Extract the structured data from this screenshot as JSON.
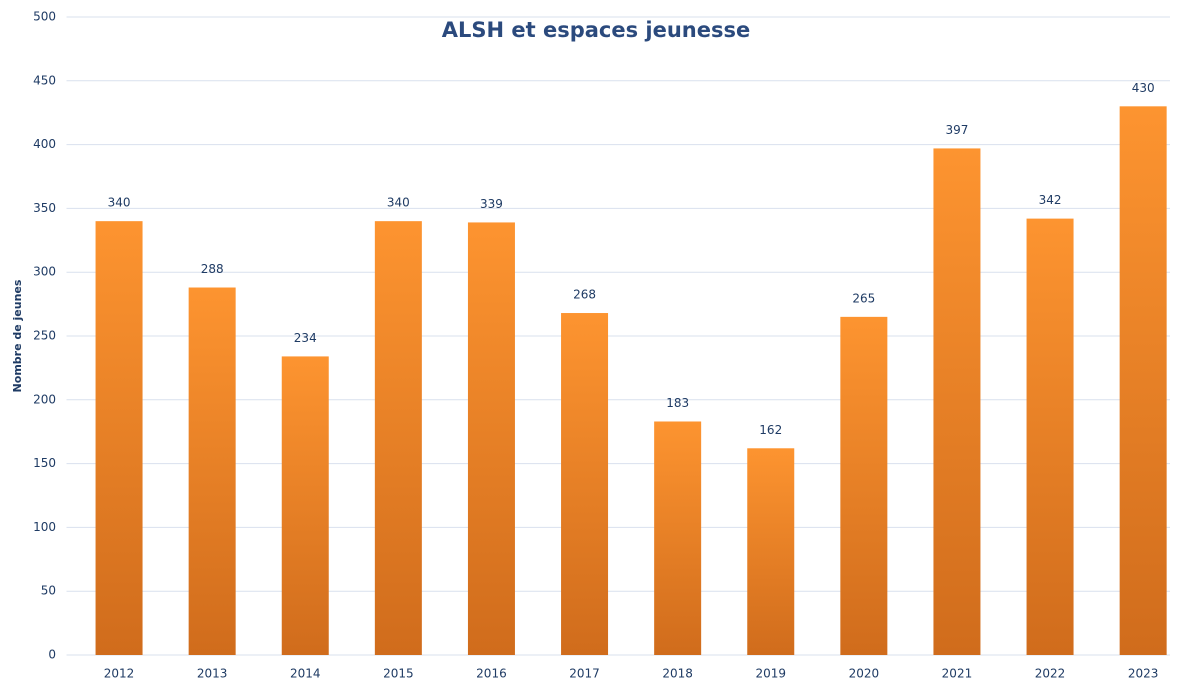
{
  "chart_data": {
    "type": "bar",
    "title": "ALSH et espaces jeunesse",
    "y_label": "Nombre de jeunes",
    "categories": [
      "2012",
      "2013",
      "2014",
      "2015",
      "2016",
      "2017",
      "2018",
      "2019",
      "2020",
      "2021",
      "2022",
      "2023"
    ],
    "values": [
      340,
      288,
      234,
      340,
      339,
      268,
      183,
      162,
      265,
      397,
      342,
      430
    ],
    "color": "#fb922f",
    "ylim": [
      0,
      500
    ],
    "yticks": [
      0,
      50,
      100,
      150,
      200,
      250,
      300,
      350,
      400,
      450,
      500
    ],
    "grid": true
  }
}
